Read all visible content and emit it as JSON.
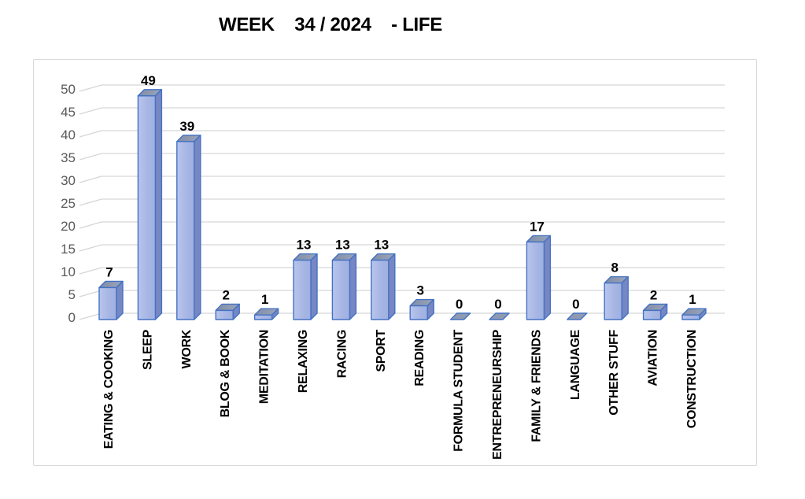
{
  "title": "WEEK    34 / 2024    - LIFE",
  "chart_data": {
    "type": "bar",
    "style": "3d-column",
    "title": "WEEK    34 / 2024    - LIFE",
    "categories": [
      "EATING & COOKING",
      "SLEEP",
      "WORK",
      "BLOG & BOOK",
      "MEDITATION",
      "RELAXING",
      "RACING",
      "SPORT",
      "READING",
      "FORMULA STUDENT",
      "ENTREPRENEURSHIP",
      "FAMILY & FRIENDS",
      "LANGUAGE",
      "OTHER STUFF",
      "AVIATION",
      "CONSTRUCTION"
    ],
    "values": [
      7,
      49,
      39,
      2,
      1,
      13,
      13,
      13,
      3,
      0,
      0,
      17,
      0,
      8,
      2,
      1
    ],
    "xlabel": "",
    "ylabel": "",
    "ylim": [
      0,
      50
    ],
    "yticks": [
      0,
      5,
      10,
      15,
      20,
      25,
      30,
      35,
      40,
      45,
      50
    ],
    "grid": true,
    "legend": false,
    "data_labels": true,
    "colors": {
      "bar_front_light": "#b9c5ec",
      "bar_front_mid": "#a7b6e4",
      "bar_front_dark": "#9fb0e0",
      "bar_side": "#7787c3",
      "bar_top": "#8e99af",
      "zero_slab": "#8f9ab1",
      "bar_border": "#4472c4",
      "gridline": "#d6d6d6",
      "tick_label": "#595959",
      "data_label": "#000000",
      "category_label": "#000000",
      "frame_border": "#d9d9d9",
      "title_color": "#000000"
    }
  }
}
